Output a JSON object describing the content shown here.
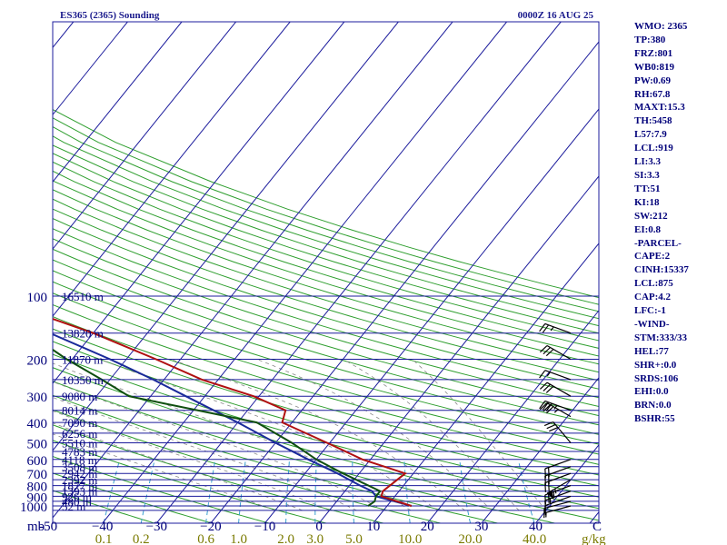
{
  "title": "ES365 (2365) Sounding",
  "time": "0000Z 16 AUG 25",
  "pressure_unit": "mb",
  "mixing_ratio_unit": "g/kg",
  "indices": [
    "WMO: 2365",
    "TP:380",
    "FRZ:801",
    "WB0:819",
    "PW:0.69",
    "RH:67.8",
    "MAXT:15.3",
    "TH:5458",
    "L57:7.9",
    "LCL:919",
    "LI:3.3",
    "SI:3.3",
    "TT:51",
    "KI:18",
    "SW:212",
    "EI:0.8",
    "-PARCEL-",
    "CAPE:2",
    "CINH:15337",
    "LCL:875",
    "CAP:4.2",
    "LFC:-1",
    "-WIND-",
    "STM:333/33",
    "HEL:77",
    "SHR+:0.0",
    "SRDS:106",
    "EHI:0.0",
    "BRN:0.0",
    "BSHR:55"
  ],
  "colors": {
    "isobar": "#1c1c9c",
    "isotherm": "#1c1c9c",
    "dry_adiabat": "#2e9e2e",
    "moist_adiabat": "#8a8a8a",
    "mixing_ratio": "#3aa0d0",
    "temperature": "#b01010",
    "dewpoint": "#0f4f0f",
    "parcel": "#1a2a9a",
    "labels": "#00007a",
    "mixing_labels": "#7a7a00"
  },
  "chart_data": {
    "type": "skew-t",
    "pressure_levels": [
      1000,
      900,
      800,
      700,
      600,
      500,
      400,
      300,
      200,
      100
    ],
    "pressure_labels": [
      "1000",
      "900",
      "800",
      "700",
      "600",
      "500",
      "400",
      "300",
      "200",
      "100"
    ],
    "height_labels": [
      {
        "p": 100,
        "label": "16510 m"
      },
      {
        "p": 150,
        "label": "13820 m"
      },
      {
        "p": 200,
        "label": "11870 m"
      },
      {
        "p": 250,
        "label": "10350 m"
      },
      {
        "p": 300,
        "label": "9080 m"
      },
      {
        "p": 350,
        "label": "8014 m"
      },
      {
        "p": 400,
        "label": "7090 m"
      },
      {
        "p": 450,
        "label": "6256 m"
      },
      {
        "p": 500,
        "label": "5510 m"
      },
      {
        "p": 550,
        "label": "4783 m"
      },
      {
        "p": 600,
        "label": "4118 m"
      },
      {
        "p": 650,
        "label": "3508 m"
      },
      {
        "p": 700,
        "label": "2942 m"
      },
      {
        "p": 750,
        "label": "2392 m"
      },
      {
        "p": 800,
        "label": "1877 m"
      },
      {
        "p": 850,
        "label": "1393 m"
      },
      {
        "p": 900,
        "label": "926 m"
      },
      {
        "p": 950,
        "label": "480 m"
      },
      {
        "p": 1000,
        "label": "52 m"
      }
    ],
    "temperature_ticks": [
      -50,
      -40,
      -30,
      -20,
      -10,
      0,
      10,
      20,
      30,
      40
    ],
    "temperature_tick_labels": [
      "-50",
      "−40",
      "−30",
      "−20",
      "−10",
      "0",
      "10",
      "20",
      "30",
      "40"
    ],
    "mixing_ratios": [
      0.1,
      0.2,
      0.6,
      1.0,
      2.0,
      3.0,
      5.0,
      10.0,
      20.0,
      40.0
    ],
    "mixing_ratio_labels": [
      "0.1",
      "0.2",
      "0.6",
      "1.0",
      "2.0",
      "3.0",
      "5.0",
      "10.0",
      "20.0",
      "40.0"
    ],
    "axis_corner_label": "C",
    "xlim": [
      -50,
      50
    ],
    "plim": [
      1050,
      100
    ],
    "temperature": [
      {
        "p": 1000,
        "t": 14.5
      },
      {
        "p": 900,
        "t": 7.5
      },
      {
        "p": 850,
        "t": 7.0
      },
      {
        "p": 700,
        "t": 8.5
      },
      {
        "p": 600,
        "t": -1.5
      },
      {
        "p": 500,
        "t": -10.5
      },
      {
        "p": 400,
        "t": -21.8
      },
      {
        "p": 350,
        "t": -23.0
      },
      {
        "p": 300,
        "t": -31.0
      },
      {
        "p": 250,
        "t": -43.0
      },
      {
        "p": 200,
        "t": -54.5
      },
      {
        "p": 150,
        "t": -70.0
      },
      {
        "p": 100,
        "t": -95.0
      }
    ],
    "dewpoint": [
      {
        "p": 1000,
        "t": 6.5
      },
      {
        "p": 950,
        "t": 7.0
      },
      {
        "p": 900,
        "t": 6.5
      },
      {
        "p": 850,
        "t": 6.5
      },
      {
        "p": 700,
        "t": -3.0
      },
      {
        "p": 600,
        "t": -10.0
      },
      {
        "p": 500,
        "t": -17.0
      },
      {
        "p": 400,
        "t": -26.5
      },
      {
        "p": 300,
        "t": -54.0
      },
      {
        "p": 250,
        "t": -61.5
      },
      {
        "p": 200,
        "t": -71.0
      },
      {
        "p": 150,
        "t": -82.0
      },
      {
        "p": 100,
        "t": -104.0
      }
    ],
    "parcel": [
      {
        "p": 1000,
        "t": 14.5
      },
      {
        "p": 900,
        "t": 6.5
      },
      {
        "p": 850,
        "t": 5.0
      },
      {
        "p": 800,
        "t": 2.0
      },
      {
        "p": 700,
        "t": -4.0
      },
      {
        "p": 600,
        "t": -11.5
      },
      {
        "p": 500,
        "t": -20.0
      },
      {
        "p": 400,
        "t": -30.0
      },
      {
        "p": 300,
        "t": -43.5
      },
      {
        "p": 250,
        "t": -52.0
      },
      {
        "p": 200,
        "t": -63.0
      },
      {
        "p": 150,
        "t": -78.0
      },
      {
        "p": 110,
        "t": -95.0
      }
    ],
    "wind_barbs": [
      {
        "p": 1000,
        "dir": 255,
        "spd": 8
      },
      {
        "p": 950,
        "dir": 255,
        "spd": 10
      },
      {
        "p": 900,
        "dir": 250,
        "spd": 12
      },
      {
        "p": 850,
        "dir": 250,
        "spd": 15
      },
      {
        "p": 800,
        "dir": 250,
        "spd": 25
      },
      {
        "p": 750,
        "dir": 240,
        "spd": 55
      },
      {
        "p": 700,
        "dir": 250,
        "spd": 20
      },
      {
        "p": 650,
        "dir": 250,
        "spd": 20
      },
      {
        "p": 600,
        "dir": 250,
        "spd": 20
      },
      {
        "p": 500,
        "dir": 320,
        "spd": 30
      },
      {
        "p": 375,
        "dir": 300,
        "spd": 35
      },
      {
        "p": 350,
        "dir": 290,
        "spd": 35
      },
      {
        "p": 300,
        "dir": 300,
        "spd": 30
      },
      {
        "p": 250,
        "dir": 290,
        "spd": 15
      },
      {
        "p": 200,
        "dir": 300,
        "spd": 30
      },
      {
        "p": 150,
        "dir": 290,
        "spd": 25
      }
    ]
  }
}
